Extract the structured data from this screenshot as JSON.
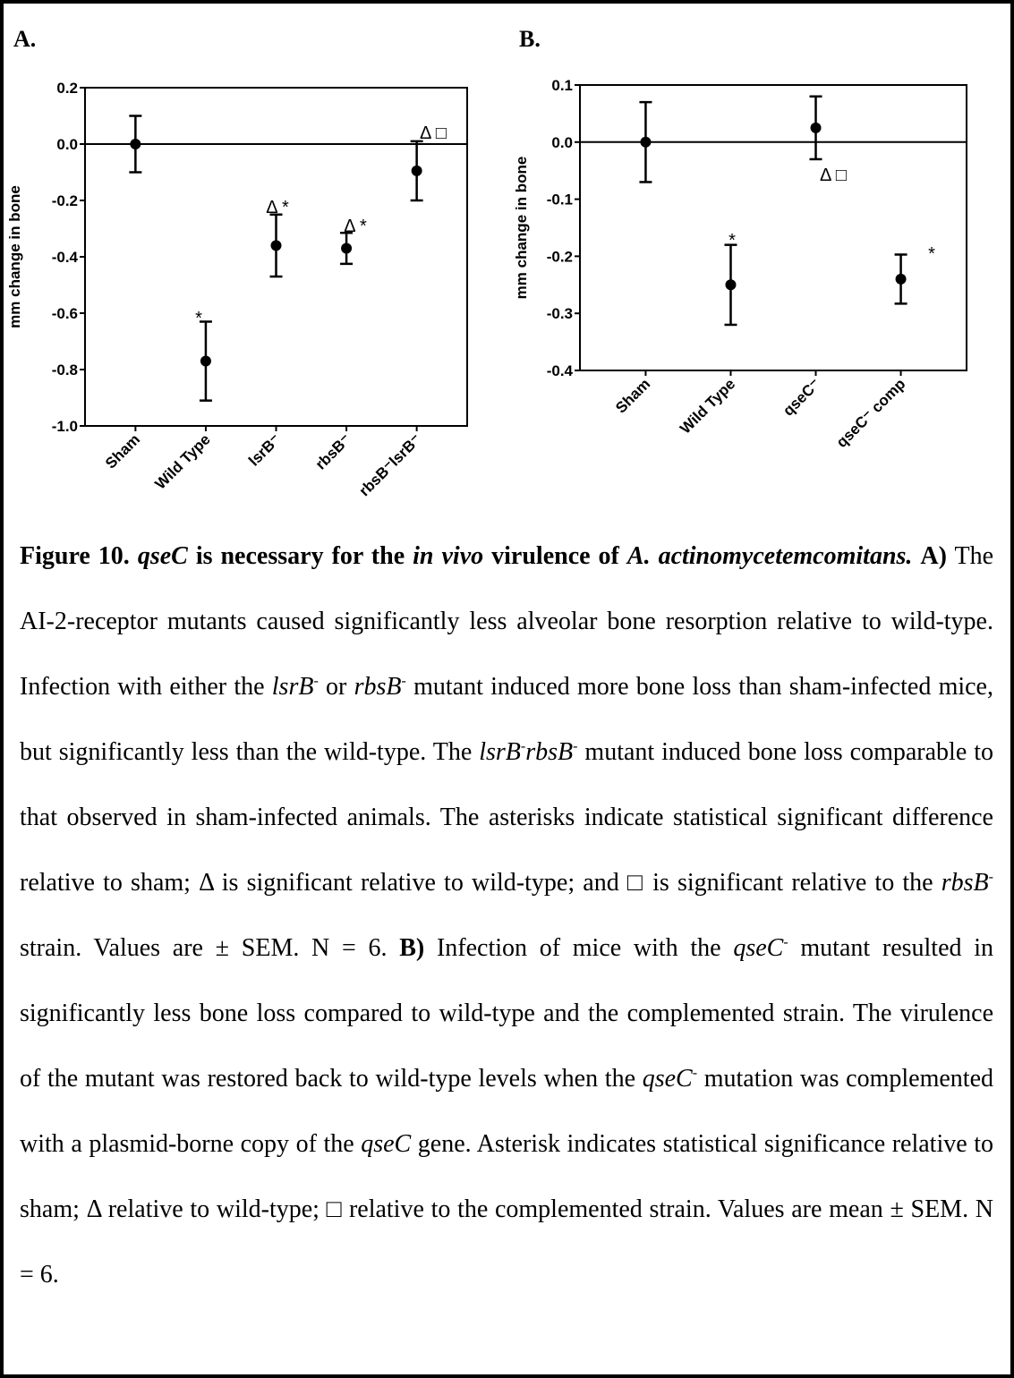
{
  "panel_labels": [
    "A.",
    "B."
  ],
  "chart_data": [
    {
      "type": "errorbar",
      "ylabel": "mm change in bone",
      "categories": [
        "Sham",
        "Wild Type",
        "lsrB⁻",
        "rbsB⁻",
        "rbsB⁻lsrB⁻"
      ],
      "values": [
        0,
        -0.77,
        -0.36,
        -0.37,
        -0.095
      ],
      "errors": [
        0.1,
        0.14,
        0.11,
        0.055,
        0.105
      ],
      "ylim": [
        -1.0,
        0.2
      ],
      "yticks": [
        0.2,
        {
          "value": 0,
          "label": "0.0"
        },
        -0.2,
        -0.4,
        -0.6,
        -0.8,
        {
          "value": -1,
          "label": "-1.0"
        }
      ],
      "reference_line": 0,
      "color": "#000000",
      "annotations": [
        "*",
        "Δ *",
        "Δ *",
        "Δ □"
      ]
    },
    {
      "type": "errorbar",
      "ylabel": "mm change in bone",
      "categories": [
        "Sham",
        "Wild Type",
        "qseC⁻",
        "qseC⁻ comp"
      ],
      "values": [
        0,
        -0.25,
        0.025,
        -0.24
      ],
      "errors": [
        0.07,
        0.07,
        0.055,
        0.043
      ],
      "ylim": [
        -0.4,
        0.1
      ],
      "yticks": [
        0.1,
        {
          "value": 0,
          "label": "0.0"
        },
        -0.1,
        -0.2,
        -0.3,
        -0.4
      ],
      "reference_line": 0,
      "color": "#000000",
      "annotations": [
        "*",
        "Δ □",
        "*"
      ]
    }
  ],
  "caption": [
    "Figure 10. ",
    "qseC",
    " is necessary for the ",
    "in vivo",
    " virulence of ",
    "A. actinomycetemcomitans.",
    "A)",
    " The AI-2-receptor mutants caused significantly less alveolar bone resorption relative to wild-type. Infection with either the ",
    "lsrB",
    "-",
    " or ",
    "rbsB",
    "-",
    " mutant induced more bone loss than sham-infected mice, but significantly less than the wild-type. The ",
    "lsrB",
    "-",
    "rbsB",
    "-",
    " mutant induced bone loss comparable to that observed in sham-infected animals. The asterisks indicate statistical significant difference relative to sham; Δ is significant relative to wild-type; and □ is significant relative to the ",
    "rbsB",
    "-",
    " strain. Values are ± SEM. N = 6. ",
    "B)",
    " Infection of mice with the ",
    "qseC",
    "-",
    " mutant resulted in significantly less bone loss compared to wild-type and the complemented strain. The virulence of the mutant was restored back to wild-type levels when the ",
    "qseC",
    "-",
    " mutation was complemented with a plasmid-borne copy of the ",
    "qseC",
    " gene. Asterisk indicates statistical significance relative to sham; Δ relative to wild-type; □ relative to the complemented strain. Values are mean ± SEM. N = 6."
  ]
}
